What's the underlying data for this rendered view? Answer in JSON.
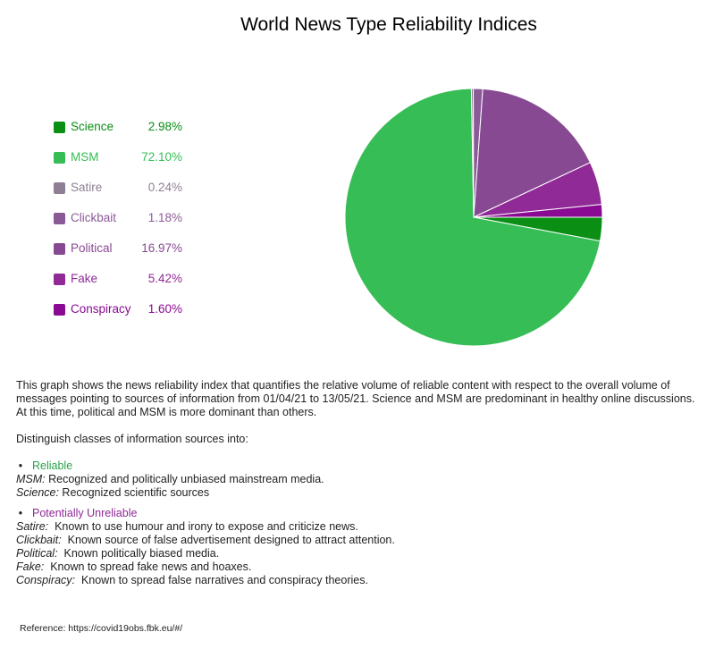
{
  "chart_data": {
    "type": "pie",
    "title": "World News Type Reliability Indices",
    "series": [
      {
        "label": "Science",
        "value": 2.98,
        "value_label": "2.98%",
        "color": "#0a8f14"
      },
      {
        "label": "MSM",
        "value": 72.1,
        "value_label": "72.10%",
        "color": "#36bd55"
      },
      {
        "label": "Satire",
        "value": 0.24,
        "value_label": "0.24%",
        "color": "#8e7f95"
      },
      {
        "label": "Clickbait",
        "value": 1.18,
        "value_label": "1.18%",
        "color": "#8a5a97"
      },
      {
        "label": "Political",
        "value": 16.97,
        "value_label": "16.97%",
        "color": "#874a92"
      },
      {
        "label": "Fake",
        "value": 5.42,
        "value_label": "5.42%",
        "color": "#8f2a96"
      },
      {
        "label": "Conspiracy",
        "value": 1.6,
        "value_label": "1.60%",
        "color": "#8a0a93"
      }
    ],
    "legend": "left"
  },
  "description": {
    "intro": "This graph shows the news reliability index that quantifies the relative volume of reliable content with respect to the overall volume of messages pointing to sources of information from 01/04/21 to 13/05/21. Science and MSM are predominant in healthy online discussions. At this time, political and MSM is more dominant than others.",
    "distinguish": "Distinguish classes of information sources into:",
    "reliable": {
      "heading": "Reliable",
      "color": "#2aa34b",
      "definitions": [
        {
          "term": "MSM:",
          "text": " Recognized and politically unbiased mainstream media."
        },
        {
          "term": "Science:",
          "text": " Recognized scientific sources"
        }
      ]
    },
    "unreliable": {
      "heading": "Potentially Unreliable",
      "color": "#8f2a96",
      "definitions": [
        {
          "term": "Satire:",
          "text": "  Known to use humour and irony to expose and criticize news."
        },
        {
          "term": "Clickbait:",
          "text": "  Known source of false advertisement designed to attract attention."
        },
        {
          "term": "Political:",
          "text": "  Known politically biased media."
        },
        {
          "term": "Fake:",
          "text": "  Known to spread fake news and hoaxes."
        },
        {
          "term": "Conspiracy:",
          "text": "  Known to spread false narratives and conspiracy theories."
        }
      ]
    },
    "bullet": "•"
  },
  "reference": "Reference: https://covid19obs.fbk.eu/#/"
}
